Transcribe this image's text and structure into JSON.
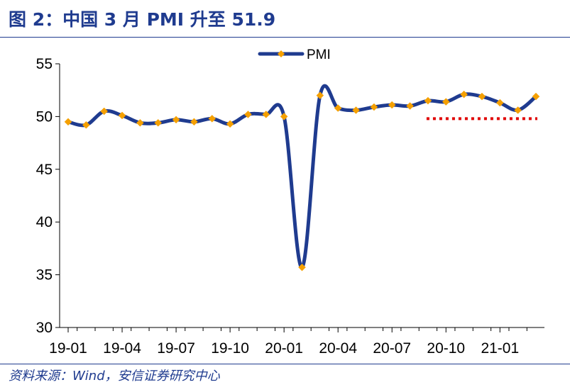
{
  "figure": {
    "title": "图 2：中国 3 月 PMI 升至 51.9",
    "source": "资料来源：Wind，安信证券研究中心"
  },
  "colors": {
    "title": "#1f3b8f",
    "line": "#1f3b8f",
    "marker": "#f5a000",
    "reference": "#e00000",
    "axis": "#000000"
  },
  "chart_data": {
    "type": "line",
    "title": "",
    "xlabel": "",
    "ylabel": "",
    "ylim": [
      30,
      55
    ],
    "yticks": [
      30,
      35,
      40,
      45,
      50,
      55
    ],
    "grid": false,
    "legend": {
      "position": "top-center",
      "entries": [
        "PMI"
      ]
    },
    "x_tick_labels": [
      "19-01",
      "19-04",
      "19-07",
      "19-10",
      "20-01",
      "20-04",
      "20-07",
      "20-10",
      "21-01"
    ],
    "x": [
      "19-01",
      "19-02",
      "19-03",
      "19-04",
      "19-05",
      "19-06",
      "19-07",
      "19-08",
      "19-09",
      "19-10",
      "19-11",
      "19-12",
      "20-01",
      "20-02",
      "20-03",
      "20-04",
      "20-05",
      "20-06",
      "20-07",
      "20-08",
      "20-09",
      "20-10",
      "20-11",
      "20-12",
      "21-01",
      "21-02",
      "21-03"
    ],
    "series": [
      {
        "name": "PMI",
        "values": [
          49.5,
          49.2,
          50.5,
          50.1,
          49.4,
          49.4,
          49.7,
          49.5,
          49.8,
          49.3,
          50.2,
          50.2,
          50.0,
          35.7,
          52.0,
          50.8,
          50.6,
          50.9,
          51.1,
          51.0,
          51.5,
          51.4,
          52.1,
          51.9,
          51.3,
          50.6,
          51.9
        ]
      }
    ],
    "reference_line": {
      "y": 49.8,
      "x_start": "20-09",
      "x_end": "21-03",
      "style": "dotted"
    }
  }
}
